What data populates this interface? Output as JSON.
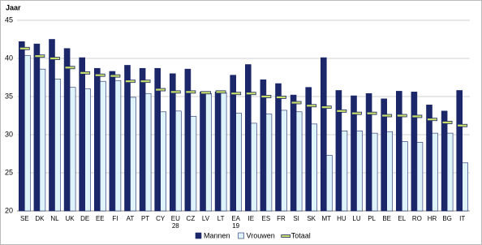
{
  "chart_data": {
    "type": "bar",
    "y_axis_label": "Jaar",
    "categories": [
      "SE",
      "DK",
      "NL",
      "UK",
      "DE",
      "EE",
      "FI",
      "AT",
      "PT",
      "CY",
      "EU 28",
      "CZ",
      "LV",
      "LT",
      "EA 19",
      "IE",
      "ES",
      "FR",
      "SI",
      "SK",
      "MT",
      "HU",
      "LU",
      "PL",
      "BE",
      "EL",
      "RO",
      "HR",
      "BG",
      "IT"
    ],
    "series": [
      {
        "name": "Mannen",
        "color": "#1b2768",
        "kind": "bar",
        "values": [
          42.2,
          41.9,
          42.5,
          41.3,
          40.1,
          38.7,
          38.3,
          39.1,
          38.7,
          38.7,
          38.0,
          38.6,
          35.6,
          35.6,
          37.8,
          39.2,
          37.2,
          36.7,
          35.2,
          36.2,
          40.1,
          35.8,
          35.1,
          35.4,
          34.7,
          35.7,
          35.6,
          33.9,
          33.1,
          35.8
        ]
      },
      {
        "name": "Vrouwen",
        "color": "#dff3fb",
        "kind": "bar",
        "values": [
          40.4,
          38.6,
          37.3,
          36.2,
          36.0,
          37.0,
          37.1,
          34.9,
          35.4,
          33.0,
          33.1,
          32.4,
          35.4,
          35.5,
          32.8,
          31.5,
          32.7,
          33.2,
          33.0,
          31.4,
          27.3,
          30.5,
          30.5,
          30.2,
          30.4,
          29.1,
          29.0,
          30.2,
          30.2,
          26.3
        ]
      },
      {
        "name": "Totaal",
        "color": "#c9df6a",
        "kind": "marker",
        "values": [
          41.3,
          40.3,
          40.0,
          38.8,
          38.1,
          37.8,
          37.7,
          37.0,
          37.0,
          35.9,
          35.6,
          35.6,
          35.5,
          35.6,
          35.4,
          35.4,
          35.0,
          34.9,
          34.2,
          33.8,
          33.6,
          33.1,
          32.8,
          32.8,
          32.5,
          32.5,
          32.4,
          32.0,
          31.6,
          31.2
        ]
      }
    ],
    "ylim": [
      20,
      45
    ],
    "yticks": [
      20,
      25,
      30,
      35,
      40,
      45
    ],
    "grid": true
  }
}
